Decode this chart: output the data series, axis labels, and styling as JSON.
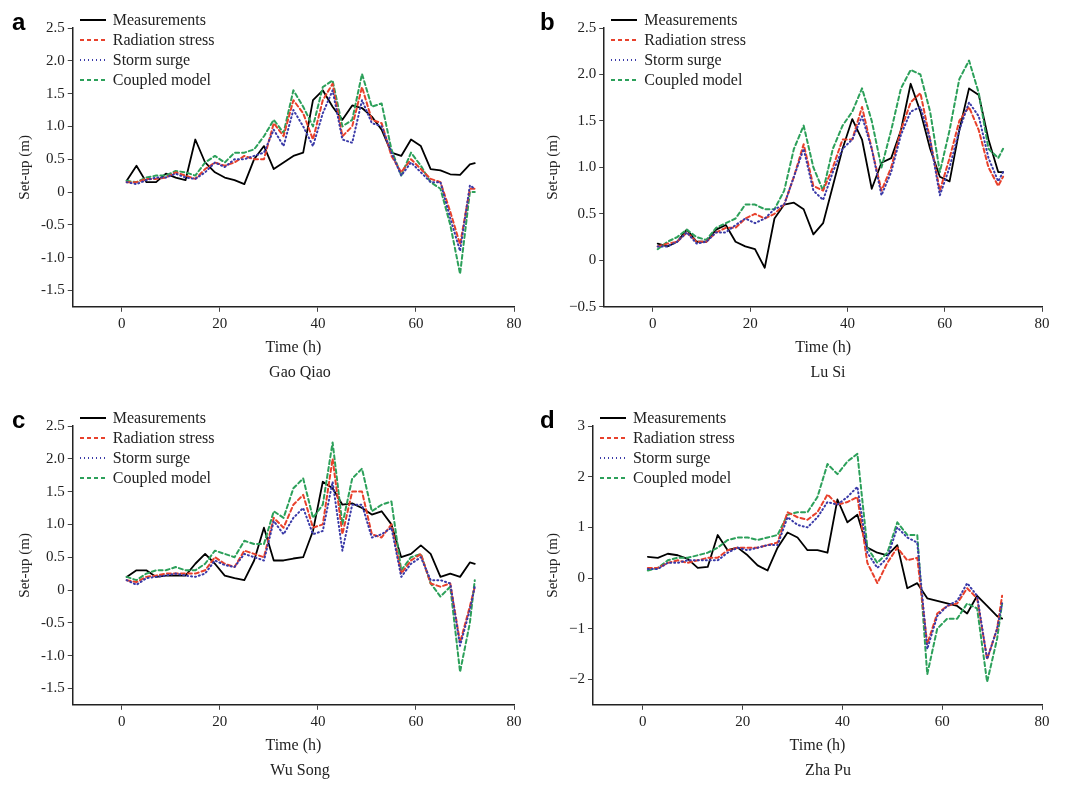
{
  "chart_data": [
    {
      "type": "line",
      "title": "a",
      "subtitle": "Gao Qiao",
      "xlabel": "Time (h)",
      "ylabel": "Set-up (m)",
      "legend": "top left",
      "grid": false,
      "marker": "none",
      "x": [
        1,
        3,
        5,
        7,
        9,
        11,
        13,
        15,
        17,
        19,
        21,
        23,
        25,
        27,
        29,
        31,
        33,
        35,
        37,
        39,
        41,
        43,
        45,
        47,
        49,
        51,
        53,
        55,
        57,
        59,
        61,
        63,
        65,
        67,
        69,
        71,
        72
      ],
      "xlim": [
        -10,
        80
      ],
      "xticks": [
        0,
        20,
        40,
        60,
        80
      ],
      "ylim": [
        -1.75,
        2.5
      ],
      "yticks": [
        2.5,
        {
          "value": 2,
          "label": "2.0"
        },
        1.5,
        {
          "value": 1,
          "label": "1.0"
        },
        0.5,
        0,
        -0.5,
        {
          "value": -1,
          "label": "-1.0"
        },
        -1.5
      ],
      "series": [
        {
          "name": "Measurements",
          "color": "#000000",
          "line_style": "solid",
          "values": [
            0.17,
            0.4,
            0.15,
            0.15,
            0.28,
            0.22,
            0.18,
            0.8,
            0.45,
            0.3,
            0.22,
            0.18,
            0.12,
            0.5,
            0.7,
            0.35,
            0.45,
            0.55,
            0.6,
            1.4,
            1.55,
            1.3,
            1.1,
            1.32,
            1.28,
            1.15,
            0.95,
            0.6,
            0.55,
            0.8,
            0.7,
            0.35,
            0.33,
            0.27,
            0.26,
            0.42,
            0.44
          ]
        },
        {
          "name": "Radiation stress",
          "color": "#e8412c",
          "line_style": "dashed",
          "values": [
            0.15,
            0.15,
            0.2,
            0.2,
            0.22,
            0.3,
            0.25,
            0.2,
            0.35,
            0.45,
            0.4,
            0.45,
            0.55,
            0.5,
            0.5,
            1.05,
            0.85,
            1.4,
            1.2,
            0.8,
            1.4,
            1.65,
            0.85,
            1.0,
            1.6,
            1.1,
            1.05,
            0.55,
            0.3,
            0.5,
            0.35,
            0.2,
            0.15,
            -0.3,
            -0.8,
            0.05,
            0.05
          ]
        },
        {
          "name": "Storm surge",
          "color": "#3a3aa8",
          "line_style": "dotted",
          "values": [
            0.15,
            0.12,
            0.18,
            0.22,
            0.22,
            0.28,
            0.22,
            0.2,
            0.3,
            0.45,
            0.38,
            0.5,
            0.5,
            0.55,
            0.6,
            0.95,
            0.7,
            1.25,
            1.0,
            0.7,
            1.2,
            1.55,
            0.8,
            0.75,
            1.4,
            1.05,
            1.0,
            0.6,
            0.25,
            0.45,
            0.3,
            0.15,
            0.15,
            -0.4,
            -0.9,
            0.1,
            0.05
          ]
        },
        {
          "name": "Coupled model",
          "color": "#2ca05a",
          "line_style": "dashed",
          "values": [
            0.17,
            0.15,
            0.22,
            0.25,
            0.25,
            0.32,
            0.3,
            0.25,
            0.45,
            0.55,
            0.45,
            0.6,
            0.6,
            0.65,
            0.85,
            1.1,
            0.9,
            1.55,
            1.3,
            1.0,
            1.6,
            1.7,
            1.0,
            1.1,
            1.8,
            1.3,
            1.35,
            0.65,
            0.25,
            0.6,
            0.4,
            0.15,
            0.05,
            -0.5,
            -1.25,
            0.0,
            0.0
          ]
        }
      ]
    },
    {
      "type": "line",
      "title": "b",
      "subtitle": "Lu Si",
      "xlabel": "Time (h)",
      "ylabel": "Set-up (m)",
      "legend": "top left",
      "grid": false,
      "marker": "none",
      "x": [
        1,
        3,
        5,
        7,
        9,
        11,
        13,
        15,
        17,
        19,
        21,
        23,
        25,
        27,
        29,
        31,
        33,
        35,
        37,
        39,
        41,
        43,
        45,
        47,
        49,
        51,
        53,
        55,
        57,
        59,
        61,
        63,
        65,
        67,
        69,
        71,
        72
      ],
      "xlim": [
        -10,
        80
      ],
      "xticks": [
        0,
        20,
        40,
        60,
        80
      ],
      "ylim": [
        -0.5,
        2.5
      ],
      "yticks": [
        2.5,
        {
          "value": 2,
          "label": "2.0"
        },
        1.5,
        {
          "value": 1,
          "label": "1.0"
        },
        0.5,
        0,
        {
          "value": -0.5,
          "label": "−0.5"
        }
      ],
      "series": [
        {
          "name": "Measurements",
          "color": "#000000",
          "line_style": "solid",
          "values": [
            0.18,
            0.15,
            0.2,
            0.33,
            0.2,
            0.2,
            0.33,
            0.38,
            0.2,
            0.15,
            0.12,
            -0.08,
            0.45,
            0.6,
            0.62,
            0.55,
            0.28,
            0.4,
            0.8,
            1.2,
            1.52,
            1.3,
            0.77,
            1.05,
            1.1,
            1.4,
            1.9,
            1.6,
            1.2,
            0.9,
            0.85,
            1.4,
            1.85,
            1.78,
            1.3,
            0.95,
            0.95
          ]
        },
        {
          "name": "Radiation stress",
          "color": "#e8412c",
          "line_style": "dashed",
          "values": [
            0.15,
            0.18,
            0.2,
            0.3,
            0.2,
            0.2,
            0.3,
            0.35,
            0.35,
            0.45,
            0.5,
            0.45,
            0.5,
            0.6,
            0.9,
            1.25,
            0.8,
            0.75,
            1.0,
            1.3,
            1.3,
            1.65,
            1.2,
            0.75,
            1.0,
            1.4,
            1.7,
            1.8,
            1.3,
            0.75,
            1.1,
            1.5,
            1.65,
            1.4,
            1.0,
            0.8,
            0.9
          ]
        },
        {
          "name": "Storm surge",
          "color": "#3a3aa8",
          "line_style": "dotted",
          "values": [
            0.15,
            0.15,
            0.2,
            0.3,
            0.18,
            0.2,
            0.3,
            0.3,
            0.38,
            0.45,
            0.4,
            0.45,
            0.55,
            0.6,
            0.9,
            1.2,
            0.75,
            0.65,
            0.95,
            1.2,
            1.3,
            1.55,
            1.2,
            0.7,
            0.95,
            1.35,
            1.6,
            1.65,
            1.3,
            0.7,
            1.0,
            1.4,
            1.7,
            1.55,
            1.1,
            0.85,
            0.95
          ]
        },
        {
          "name": "Coupled model",
          "color": "#2ca05a",
          "line_style": "dashed",
          "values": [
            0.12,
            0.2,
            0.25,
            0.33,
            0.25,
            0.22,
            0.35,
            0.4,
            0.45,
            0.6,
            0.6,
            0.55,
            0.55,
            0.75,
            1.2,
            1.45,
            1.0,
            0.75,
            1.2,
            1.45,
            1.6,
            1.85,
            1.5,
            1.0,
            1.4,
            1.85,
            2.05,
            2.0,
            1.6,
            0.95,
            1.4,
            1.95,
            2.15,
            1.8,
            1.2,
            1.1,
            1.2
          ]
        }
      ]
    },
    {
      "type": "line",
      "title": "c",
      "subtitle": "Wu Song",
      "xlabel": "Time (h)",
      "ylabel": "Set-up (m)",
      "legend": "top left",
      "grid": false,
      "marker": "none",
      "x": [
        1,
        3,
        5,
        7,
        9,
        11,
        13,
        15,
        17,
        19,
        21,
        23,
        25,
        27,
        29,
        31,
        33,
        35,
        37,
        39,
        41,
        43,
        45,
        47,
        49,
        51,
        53,
        55,
        57,
        59,
        61,
        63,
        65,
        67,
        69,
        71,
        72
      ],
      "xlim": [
        -10,
        80
      ],
      "xticks": [
        0,
        20,
        40,
        60,
        80
      ],
      "ylim": [
        -1.75,
        2.5
      ],
      "yticks": [
        2.5,
        {
          "value": 2,
          "label": "2.0"
        },
        1.5,
        {
          "value": 1,
          "label": "1.0"
        },
        0.5,
        0,
        -0.5,
        {
          "value": -1,
          "label": "-1.0"
        },
        -1.5
      ],
      "series": [
        {
          "name": "Measurements",
          "color": "#000000",
          "line_style": "solid",
          "values": [
            0.2,
            0.3,
            0.3,
            0.2,
            0.22,
            0.22,
            0.22,
            0.4,
            0.55,
            0.4,
            0.22,
            0.18,
            0.15,
            0.45,
            0.95,
            0.45,
            0.45,
            0.48,
            0.5,
            0.9,
            1.65,
            1.55,
            1.3,
            1.32,
            1.25,
            1.15,
            1.2,
            1.0,
            0.5,
            0.55,
            0.68,
            0.55,
            0.2,
            0.25,
            0.2,
            0.42,
            0.4
          ]
        },
        {
          "name": "Radiation stress",
          "color": "#e8412c",
          "line_style": "dashed",
          "values": [
            0.15,
            0.12,
            0.2,
            0.22,
            0.25,
            0.25,
            0.25,
            0.25,
            0.3,
            0.5,
            0.4,
            0.35,
            0.6,
            0.55,
            0.5,
            1.1,
            0.95,
            1.3,
            1.45,
            0.95,
            1.0,
            2.0,
            0.85,
            1.5,
            1.5,
            0.85,
            0.8,
            1.0,
            0.25,
            0.45,
            0.55,
            0.1,
            0.05,
            0.1,
            -0.8,
            -0.25,
            0.05
          ]
        },
        {
          "name": "Storm surge",
          "color": "#3a3aa8",
          "line_style": "dotted",
          "values": [
            0.15,
            0.08,
            0.18,
            0.2,
            0.22,
            0.25,
            0.22,
            0.2,
            0.25,
            0.45,
            0.38,
            0.35,
            0.55,
            0.5,
            0.45,
            1.05,
            0.85,
            1.1,
            1.25,
            0.85,
            0.9,
            1.65,
            0.6,
            1.3,
            1.3,
            0.8,
            0.85,
            0.95,
            0.2,
            0.4,
            0.5,
            0.15,
            0.15,
            0.1,
            -0.85,
            -0.3,
            0.05
          ]
        },
        {
          "name": "Coupled model",
          "color": "#2ca05a",
          "line_style": "dashed",
          "values": [
            0.2,
            0.15,
            0.25,
            0.3,
            0.3,
            0.35,
            0.3,
            0.3,
            0.4,
            0.6,
            0.55,
            0.5,
            0.75,
            0.7,
            0.7,
            1.2,
            1.1,
            1.55,
            1.7,
            1.1,
            1.3,
            2.25,
            1.0,
            1.7,
            1.85,
            1.2,
            1.3,
            1.35,
            0.3,
            0.5,
            0.55,
            0.1,
            -0.1,
            0.05,
            -1.25,
            -0.5,
            0.15
          ]
        }
      ]
    },
    {
      "type": "line",
      "title": "d",
      "subtitle": "Zha Pu",
      "xlabel": "Time (h)",
      "ylabel": "Set-up (m)",
      "legend": "top left",
      "grid": false,
      "marker": "none",
      "x": [
        1,
        3,
        5,
        7,
        9,
        11,
        13,
        15,
        17,
        19,
        21,
        23,
        25,
        27,
        29,
        31,
        33,
        35,
        37,
        39,
        41,
        43,
        45,
        47,
        49,
        51,
        53,
        55,
        57,
        59,
        61,
        63,
        65,
        67,
        69,
        71,
        72
      ],
      "xlim": [
        -10,
        80
      ],
      "xticks": [
        0,
        20,
        40,
        60,
        80
      ],
      "ylim": [
        -2.5,
        3
      ],
      "yticks": [
        3,
        2,
        1,
        0,
        {
          "value": -1,
          "label": "−1"
        },
        {
          "value": -2,
          "label": "−2"
        }
      ],
      "series": [
        {
          "name": "Measurements",
          "color": "#000000",
          "line_style": "solid",
          "values": [
            0.42,
            0.4,
            0.48,
            0.45,
            0.38,
            0.2,
            0.22,
            0.85,
            0.55,
            0.6,
            0.45,
            0.25,
            0.15,
            0.6,
            0.9,
            0.8,
            0.55,
            0.55,
            0.5,
            1.55,
            1.1,
            1.25,
            0.6,
            0.5,
            0.45,
            0.65,
            -0.2,
            -0.1,
            -0.4,
            -0.45,
            -0.5,
            -0.55,
            -0.7,
            -0.35,
            -0.55,
            -0.75,
            -0.8
          ]
        },
        {
          "name": "Radiation stress",
          "color": "#e8412c",
          "line_style": "dashed",
          "values": [
            0.2,
            0.2,
            0.3,
            0.35,
            0.3,
            0.35,
            0.4,
            0.4,
            0.55,
            0.6,
            0.6,
            0.6,
            0.65,
            0.7,
            1.3,
            1.2,
            1.15,
            1.3,
            1.65,
            1.45,
            1.5,
            1.6,
            0.3,
            -0.1,
            0.3,
            0.6,
            0.35,
            0.4,
            -1.3,
            -0.7,
            -0.55,
            -0.5,
            -0.2,
            -0.4,
            -1.6,
            -1.0,
            -0.35
          ]
        },
        {
          "name": "Storm surge",
          "color": "#3a3aa8",
          "line_style": "dotted",
          "values": [
            0.18,
            0.18,
            0.3,
            0.3,
            0.35,
            0.35,
            0.35,
            0.35,
            0.5,
            0.6,
            0.55,
            0.6,
            0.65,
            0.65,
            1.2,
            1.05,
            1.0,
            1.2,
            1.5,
            1.45,
            1.6,
            1.8,
            0.5,
            0.2,
            0.4,
            1.0,
            0.8,
            0.7,
            -1.4,
            -0.75,
            -0.55,
            -0.45,
            -0.1,
            -0.35,
            -1.6,
            -1.0,
            -0.5
          ]
        },
        {
          "name": "Coupled model",
          "color": "#2ca05a",
          "line_style": "dashed",
          "values": [
            0.15,
            0.2,
            0.35,
            0.4,
            0.4,
            0.45,
            0.5,
            0.6,
            0.75,
            0.8,
            0.8,
            0.75,
            0.8,
            0.85,
            1.25,
            1.3,
            1.3,
            1.6,
            2.25,
            2.05,
            2.3,
            2.45,
            0.6,
            0.3,
            0.5,
            1.1,
            0.85,
            0.85,
            -1.9,
            -1.0,
            -0.8,
            -0.8,
            -0.5,
            -0.6,
            -2.05,
            -1.2,
            -0.5
          ]
        }
      ]
    }
  ]
}
